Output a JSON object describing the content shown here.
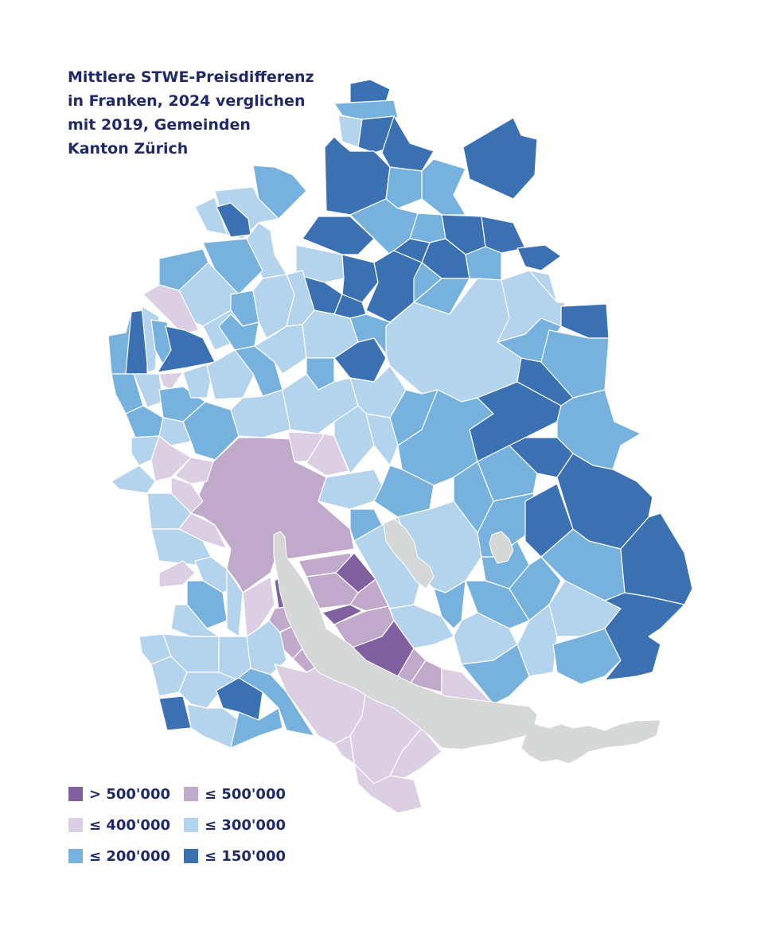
{
  "title_lines": [
    "Mittlere STWE-Preisdifferenz",
    "in Franken, 2024 verglichen",
    "mit 2019, Gemeinden",
    "Kanton Zürich"
  ],
  "legend": [
    {
      "label": "> 500'000",
      "color": "#80609f"
    },
    {
      "label": "≤ 500'000",
      "color": "#c1a9cc"
    },
    {
      "label": "≤ 400'000",
      "color": "#dccfe4"
    },
    {
      "label": "≤ 300'000",
      "color": "#b4d3ec"
    },
    {
      "label": "≤ 200'000",
      "color": "#76b2dd"
    },
    {
      "label": "≤ 150'000",
      "color": "#3b71b3"
    }
  ],
  "colors": {
    "title": "#1f2a66",
    "lake": "#d6d8d7",
    "boundary": "#ffffff"
  }
}
